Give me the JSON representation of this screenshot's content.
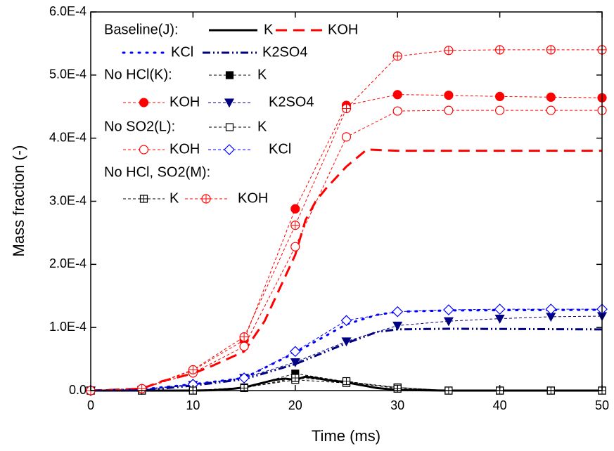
{
  "chart_data": {
    "type": "line",
    "x_label": "Time (ms)",
    "y_label": "Mass fraction (-)",
    "xlim": [
      0,
      50
    ],
    "ylim": [
      0,
      0.0006
    ],
    "xticks": [
      0,
      10,
      20,
      30,
      40,
      50
    ],
    "yticks": [
      {
        "value": 0,
        "label": "0.0"
      },
      {
        "value": 0.0001,
        "label": "1.0E-4"
      },
      {
        "value": 0.0002,
        "label": "2.0E-4"
      },
      {
        "value": 0.0003,
        "label": "3.0E-4"
      },
      {
        "value": 0.0004,
        "label": "4.0E-4"
      },
      {
        "value": 0.0005,
        "label": "5.0E-4"
      },
      {
        "value": 0.0006,
        "label": "6.0E-4"
      }
    ],
    "groups": [
      {
        "name": "Baseline(J):",
        "series": [
          {
            "name": "K",
            "color": "#000000",
            "dash": "solid",
            "marker": "none",
            "x": [
              0,
              5,
              10,
              12,
              14,
              15,
              16,
              17,
              18,
              19,
              20,
              21,
              22,
              23,
              24,
              25,
              26,
              27,
              28,
              30,
              35,
              50
            ],
            "values": [
              0,
              0,
              0,
              5e-07,
              3e-06,
              5e-06,
              9e-06,
              1.3e-05,
              1.7e-05,
              1.9e-05,
              1.7e-05,
              2.2e-05,
              2e-05,
              1.7e-05,
              1.5e-05,
              1.3e-05,
              1e-05,
              7e-06,
              4e-06,
              1e-06,
              0,
              0
            ]
          },
          {
            "name": "KOH",
            "color": "#ff0000",
            "dash": "long",
            "marker": "none",
            "x": [
              0,
              5,
              7,
              10,
              12,
              15,
              17,
              19,
              20,
              21,
              22,
              23,
              25,
              27,
              30,
              35,
              40,
              50
            ],
            "values": [
              0,
              3e-06,
              1.5e-05,
              2.7e-05,
              4e-05,
              6.2e-05,
              0.00011,
              0.00018,
              0.000215,
              0.00027,
              0.0003,
              0.00032,
              0.000355,
              0.000382,
              0.00038,
              0.00038,
              0.00038,
              0.00038
            ]
          },
          {
            "name": "KCl",
            "color": "#0000ff",
            "dash": "dot",
            "marker": "none",
            "x": [
              0,
              5,
              10,
              15,
              20,
              25,
              28,
              30,
              35,
              50
            ],
            "values": [
              0,
              2e-06,
              1e-05,
              2e-05,
              6e-05,
              0.000105,
              0.00012,
              0.000125,
              0.000127,
              0.000128
            ]
          },
          {
            "name": "K2SO4",
            "color": "#000080",
            "dash": "dashdotdot",
            "marker": "none",
            "x": [
              0,
              5,
              10,
              15,
              20,
              25,
              28,
              30,
              35,
              50
            ],
            "values": [
              0,
              0,
              8e-06,
              1.8e-05,
              4.2e-05,
              7.5e-05,
              9.3e-05,
              9.7e-05,
              9.8e-05,
              9.7e-05
            ]
          }
        ]
      },
      {
        "name": "No HCl(K):",
        "series": [
          {
            "name": "K",
            "color": "#000000",
            "dash": "thin",
            "marker": "square-filled",
            "x": [
              0,
              5,
              10,
              15,
              20,
              25,
              30,
              35,
              40,
              45,
              50
            ],
            "values": [
              0,
              0,
              0,
              5e-06,
              2.7e-05,
              1.4e-05,
              5e-06,
              0,
              0,
              0,
              0
            ]
          },
          {
            "name": "KOH",
            "color": "#ff0000",
            "dash": "thin",
            "marker": "circle-filled",
            "x": [
              0,
              5,
              10,
              15,
              20,
              25,
              30,
              35,
              40,
              45,
              50
            ],
            "values": [
              0,
              3e-06,
              3.2e-05,
              8e-05,
              0.000288,
              0.000452,
              0.000469,
              0.000468,
              0.000466,
              0.000465,
              0.000464
            ]
          },
          {
            "name": "K2SO4",
            "color": "#000080",
            "dash": "thin",
            "marker": "triangle-filled",
            "x": [
              0,
              5,
              10,
              15,
              20,
              25,
              30,
              35,
              40,
              45,
              50
            ],
            "values": [
              0,
              1e-06,
              9e-06,
              2e-05,
              4.5e-05,
              7.8e-05,
              0.000103,
              0.00011,
              0.000114,
              0.000117,
              0.000118
            ]
          }
        ]
      },
      {
        "name": "No SO2(L):",
        "series": [
          {
            "name": "K",
            "color": "#000000",
            "dash": "thin",
            "marker": "square-open",
            "x": [
              0,
              5,
              10,
              15,
              20,
              25,
              30,
              35,
              40,
              45,
              50
            ],
            "values": [
              0,
              0,
              0,
              5e-06,
              1.7e-05,
              1.2e-05,
              5e-06,
              0,
              0,
              0,
              0
            ]
          },
          {
            "name": "KOH",
            "color": "#ff0000",
            "dash": "thin",
            "marker": "circle-open",
            "x": [
              0,
              5,
              10,
              15,
              20,
              25,
              30,
              35,
              40,
              45,
              50
            ],
            "values": [
              0,
              3e-06,
              2.8e-05,
              7e-05,
              0.000228,
              0.000402,
              0.000443,
              0.000444,
              0.000444,
              0.000444,
              0.000444
            ]
          },
          {
            "name": "KCl",
            "color": "#0000ff",
            "dash": "thin",
            "marker": "diamond-open",
            "x": [
              0,
              5,
              10,
              15,
              20,
              25,
              30,
              35,
              40,
              45,
              50
            ],
            "values": [
              0,
              2e-06,
              1e-05,
              2e-05,
              6.2e-05,
              0.000111,
              0.000125,
              0.000128,
              0.000129,
              0.000129,
              0.000129
            ]
          }
        ]
      },
      {
        "name": "No HCl, SO2(M):",
        "series": [
          {
            "name": "K",
            "color": "#000000",
            "dash": "thin",
            "marker": "square-plus",
            "x": [
              0,
              5,
              10,
              15,
              20,
              25,
              30,
              35,
              40,
              45,
              50
            ],
            "values": [
              0,
              0,
              0,
              4e-06,
              2e-05,
              1.5e-05,
              3e-06,
              0,
              0,
              0,
              0
            ]
          },
          {
            "name": "KOH",
            "color": "#ff0000",
            "dash": "thin",
            "marker": "circle-plus",
            "x": [
              0,
              5,
              10,
              15,
              20,
              25,
              30,
              35,
              40,
              45,
              50
            ],
            "values": [
              0,
              3e-06,
              3.3e-05,
              8.5e-05,
              0.000262,
              0.000447,
              0.00053,
              0.000539,
              0.00054,
              0.00054,
              0.00054
            ]
          }
        ]
      }
    ]
  }
}
